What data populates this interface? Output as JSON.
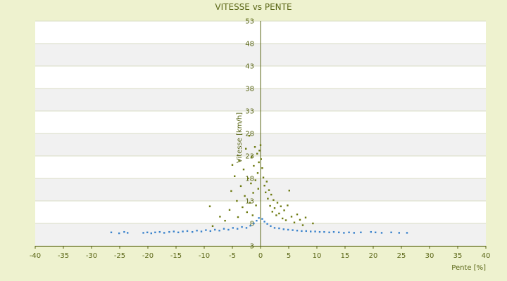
{
  "chart_data": {
    "type": "scatter",
    "title": "VITESSE vs PENTE",
    "xlabel": "Pente [%]",
    "ylabel": "Vitesse [km/h]",
    "xlim": [
      -40,
      40
    ],
    "ylim": [
      3,
      53
    ],
    "x_ticks": [
      "-40",
      "-35",
      "-30",
      "-25",
      "-20",
      "-15",
      "-10",
      "-5",
      "0",
      "5",
      "10",
      "15",
      "20",
      "25",
      "30",
      "35",
      "40"
    ],
    "y_ticks": [
      "3",
      "8",
      "13",
      "18",
      "23",
      "28",
      "33",
      "38",
      "43",
      "48",
      "53"
    ],
    "grid": true,
    "legend": "none",
    "series": [
      {
        "color": "#3b83cc",
        "points": [
          [
            -26.5,
            6.0
          ],
          [
            -25.1,
            5.8
          ],
          [
            -24.2,
            6.1
          ],
          [
            -23.6,
            5.9
          ],
          [
            -20.8,
            5.9
          ],
          [
            -20.1,
            6.0
          ],
          [
            -19.4,
            5.8
          ],
          [
            -18.7,
            6.0
          ],
          [
            -17.9,
            6.1
          ],
          [
            -17.1,
            5.9
          ],
          [
            -16.2,
            6.1
          ],
          [
            -15.4,
            6.2
          ],
          [
            -14.6,
            6.0
          ],
          [
            -13.8,
            6.2
          ],
          [
            -13.0,
            6.3
          ],
          [
            -12.1,
            6.1
          ],
          [
            -11.3,
            6.4
          ],
          [
            -10.5,
            6.2
          ],
          [
            -9.7,
            6.5
          ],
          [
            -8.9,
            6.3
          ],
          [
            -8.1,
            6.6
          ],
          [
            -7.3,
            6.4
          ],
          [
            -6.5,
            6.8
          ],
          [
            -5.7,
            6.6
          ],
          [
            -4.9,
            7.0
          ],
          [
            -4.1,
            6.8
          ],
          [
            -3.3,
            7.2
          ],
          [
            -2.5,
            7.0
          ],
          [
            -1.8,
            7.5
          ],
          [
            -1.2,
            8.0
          ],
          [
            -0.7,
            8.6
          ],
          [
            -0.3,
            9.2
          ],
          [
            0.3,
            9.0
          ],
          [
            0.7,
            8.4
          ],
          [
            1.2,
            7.9
          ],
          [
            1.8,
            7.4
          ],
          [
            2.5,
            7.0
          ],
          [
            3.3,
            6.9
          ],
          [
            4.1,
            6.7
          ],
          [
            4.9,
            6.6
          ],
          [
            5.7,
            6.5
          ],
          [
            6.5,
            6.4
          ],
          [
            7.3,
            6.3
          ],
          [
            8.1,
            6.3
          ],
          [
            8.9,
            6.2
          ],
          [
            9.7,
            6.2
          ],
          [
            10.5,
            6.1
          ],
          [
            11.3,
            6.1
          ],
          [
            12.2,
            6.0
          ],
          [
            13.0,
            6.1
          ],
          [
            13.9,
            6.0
          ],
          [
            14.8,
            5.9
          ],
          [
            15.7,
            6.0
          ],
          [
            16.6,
            5.9
          ],
          [
            17.8,
            6.0
          ],
          [
            19.6,
            6.1
          ],
          [
            20.4,
            6.0
          ],
          [
            21.5,
            5.9
          ],
          [
            23.2,
            6.0
          ],
          [
            24.6,
            5.9
          ],
          [
            26.0,
            5.9
          ]
        ]
      },
      {
        "color": "#6d7a10",
        "points": [
          [
            -9.0,
            11.8
          ],
          [
            -8.5,
            7.4
          ],
          [
            -7.2,
            9.5
          ],
          [
            -6.3,
            8.6
          ],
          [
            -5.5,
            11.0
          ],
          [
            -5.2,
            15.2
          ],
          [
            -5.0,
            21.0
          ],
          [
            -4.6,
            18.5
          ],
          [
            -4.2,
            13.0
          ],
          [
            -4.0,
            9.4
          ],
          [
            -3.8,
            22.0
          ],
          [
            -3.5,
            16.3
          ],
          [
            -3.2,
            11.6
          ],
          [
            -3.0,
            20.0
          ],
          [
            -2.8,
            14.1
          ],
          [
            -2.6,
            24.6
          ],
          [
            -2.4,
            10.5
          ],
          [
            -2.2,
            18.0
          ],
          [
            -2.0,
            27.5
          ],
          [
            -1.9,
            12.6
          ],
          [
            -1.7,
            16.9
          ],
          [
            -1.6,
            22.8
          ],
          [
            -1.4,
            9.8
          ],
          [
            -1.3,
            14.8
          ],
          [
            -1.2,
            20.8
          ],
          [
            -1.0,
            25.0
          ],
          [
            -0.9,
            17.6
          ],
          [
            -0.8,
            12.0
          ],
          [
            -0.6,
            23.5
          ],
          [
            -0.5,
            19.2
          ],
          [
            -0.4,
            15.7
          ],
          [
            -0.3,
            21.6
          ],
          [
            -0.2,
            24.2
          ],
          [
            0.0,
            25.4
          ],
          [
            0.1,
            22.3
          ],
          [
            0.3,
            20.3
          ],
          [
            0.5,
            18.2
          ],
          [
            0.7,
            16.4
          ],
          [
            0.9,
            14.9
          ],
          [
            1.1,
            17.3
          ],
          [
            1.3,
            13.5
          ],
          [
            1.5,
            15.4
          ],
          [
            1.7,
            11.9
          ],
          [
            1.9,
            14.4
          ],
          [
            2.1,
            10.6
          ],
          [
            2.3,
            13.2
          ],
          [
            2.5,
            11.4
          ],
          [
            2.8,
            9.8
          ],
          [
            3.0,
            12.6
          ],
          [
            3.3,
            10.2
          ],
          [
            3.6,
            11.8
          ],
          [
            3.9,
            9.1
          ],
          [
            4.2,
            10.9
          ],
          [
            4.5,
            8.7
          ],
          [
            4.8,
            12.0
          ],
          [
            5.1,
            15.3
          ],
          [
            5.5,
            9.5
          ],
          [
            6.0,
            8.2
          ],
          [
            6.5,
            10.0
          ],
          [
            7.0,
            8.8
          ],
          [
            7.5,
            7.6
          ],
          [
            8.0,
            9.3
          ],
          [
            9.3,
            8.0
          ]
        ]
      }
    ]
  }
}
